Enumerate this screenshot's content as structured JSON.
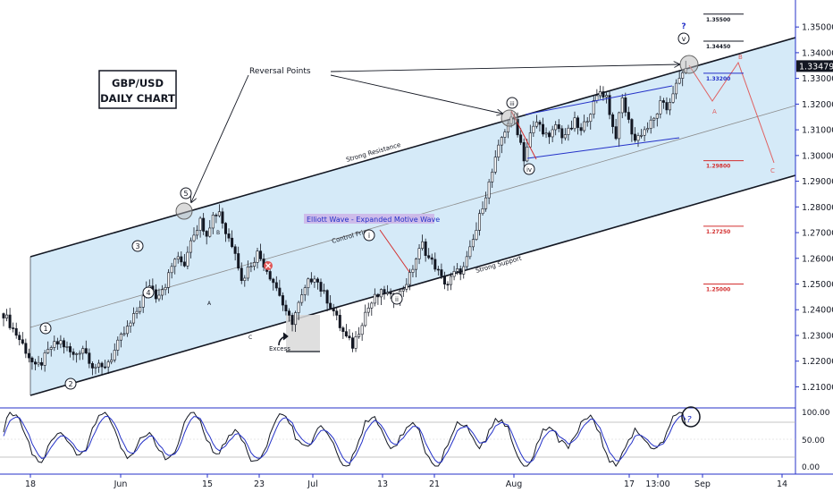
{
  "chart_data": {
    "type": "candlestick",
    "title": "GBP/USD DAILY CHART",
    "title_lines": [
      "GBP/USD",
      "DAILY CHART"
    ],
    "pair": "GBP/USD",
    "timeframe": "Daily",
    "x_tick_labels": [
      "18",
      "Jun",
      "15",
      "23",
      "Jul",
      "13",
      "21",
      "Aug",
      "17",
      "13:00",
      "Sep",
      "14"
    ],
    "price_axis": {
      "ticks": [
        "1.35000",
        "1.34000",
        "1.33000",
        "1.32000",
        "1.31000",
        "1.30000",
        "1.29000",
        "1.28000",
        "1.27000",
        "1.26000",
        "1.25000",
        "1.24000",
        "1.23000",
        "1.22000",
        "1.21000"
      ],
      "ylim": [
        1.2025,
        1.3605
      ],
      "last_price": "1.33479",
      "last_price_value": 1.33479
    },
    "price_path": [
      [
        0,
        1.2385
      ],
      [
        6,
        1.2265
      ],
      [
        10,
        1.2172
      ],
      [
        12,
        1.2195
      ],
      [
        15,
        1.2255
      ],
      [
        18,
        1.2275
      ],
      [
        22,
        1.222
      ],
      [
        25,
        1.2255
      ],
      [
        28,
        1.2185
      ],
      [
        31,
        1.217
      ],
      [
        34,
        1.2215
      ],
      [
        37,
        1.229
      ],
      [
        40,
        1.2345
      ],
      [
        43,
        1.242
      ],
      [
        46,
        1.25
      ],
      [
        48,
        1.2455
      ],
      [
        51,
        1.25
      ],
      [
        54,
        1.26
      ],
      [
        57,
        1.258
      ],
      [
        59,
        1.268
      ],
      [
        62,
        1.2745
      ],
      [
        64,
        1.27
      ],
      [
        66,
        1.2765
      ],
      [
        68,
        1.2785
      ],
      [
        70,
        1.27
      ],
      [
        73,
        1.2635
      ],
      [
        75,
        1.251
      ],
      [
        77,
        1.256
      ],
      [
        80,
        1.262
      ],
      [
        82,
        1.258
      ],
      [
        85,
        1.251
      ],
      [
        87,
        1.246
      ],
      [
        89,
        1.238
      ],
      [
        91,
        1.2355
      ],
      [
        93,
        1.242
      ],
      [
        96,
        1.2505
      ],
      [
        98,
        1.2535
      ],
      [
        100,
        1.248
      ],
      [
        102,
        1.244
      ],
      [
        104,
        1.2395
      ],
      [
        106,
        1.2335
      ],
      [
        108,
        1.229
      ],
      [
        110,
        1.226
      ],
      [
        112,
        1.232
      ],
      [
        114,
        1.239
      ],
      [
        117,
        1.2445
      ],
      [
        120,
        1.247
      ],
      [
        122,
        1.2445
      ],
      [
        125,
        1.2465
      ],
      [
        128,
        1.253
      ],
      [
        130,
        1.26
      ],
      [
        132,
        1.2655
      ],
      [
        134,
        1.26
      ],
      [
        136,
        1.257
      ],
      [
        138,
        1.252
      ],
      [
        140,
        1.25
      ],
      [
        142,
        1.254
      ],
      [
        145,
        1.256
      ],
      [
        147,
        1.263
      ],
      [
        149,
        1.271
      ],
      [
        151,
        1.281
      ],
      [
        153,
        1.289
      ],
      [
        155,
        1.298
      ],
      [
        157,
        1.307
      ],
      [
        159,
        1.313
      ],
      [
        161,
        1.314
      ],
      [
        163,
        1.305
      ],
      [
        164,
        1.299
      ],
      [
        166,
        1.308
      ],
      [
        168,
        1.313
      ],
      [
        170,
        1.31
      ],
      [
        172,
        1.306
      ],
      [
        174,
        1.312
      ],
      [
        176,
        1.308
      ],
      [
        178,
        1.309
      ],
      [
        180,
        1.313
      ],
      [
        182,
        1.309
      ],
      [
        184,
        1.315
      ],
      [
        186,
        1.32
      ],
      [
        188,
        1.325
      ],
      [
        190,
        1.323
      ],
      [
        192,
        1.311
      ],
      [
        193,
        1.308
      ],
      [
        195,
        1.322
      ],
      [
        197,
        1.313
      ],
      [
        199,
        1.306
      ],
      [
        201,
        1.309
      ],
      [
        203,
        1.311
      ],
      [
        205,
        1.314
      ],
      [
        207,
        1.32
      ],
      [
        209,
        1.318
      ],
      [
        211,
        1.325
      ],
      [
        213,
        1.329
      ],
      [
        215,
        1.3348
      ]
    ],
    "channel": {
      "label_upper": "Strong Resistance",
      "label_middle": "Control Price",
      "label_lower": "Strong Support"
    },
    "fib_levels": [
      {
        "label": "1.35500",
        "value": 1.355,
        "color": "#131722"
      },
      {
        "label": "1.34450",
        "value": 1.3445,
        "color": "#131722"
      },
      {
        "label": "1.33200",
        "value": 1.332,
        "color": "#2431c8"
      },
      {
        "label": "1.29800",
        "value": 1.298,
        "color": "#d32f2f"
      },
      {
        "label": "1.27250",
        "value": 1.2725,
        "color": "#d32f2f"
      },
      {
        "label": "1.25000",
        "value": 1.25,
        "color": "#d32f2f"
      }
    ],
    "annotations": {
      "reversal_points": "Reversal Points",
      "elliott_wave": "Elliott Wave - Expanded Motive Wave",
      "excess": "Excess",
      "question_marks": [
        "?",
        "?"
      ]
    },
    "wave_labels_circled": [
      "1",
      "2",
      "3",
      "4",
      "5",
      "i",
      "ii",
      "iii",
      "iv",
      "v"
    ],
    "wave_labels_plain": [
      "A",
      "B",
      "C",
      "A",
      "B",
      "C"
    ],
    "oscillator": {
      "ticks": [
        "100.00",
        "50.00",
        "0.00"
      ],
      "ylim": [
        0,
        100
      ]
    }
  },
  "colors": {
    "channel_fill": "#d3e9f8",
    "channel_line": "#131722",
    "candle_up": "#131722",
    "candle_down": "#131722",
    "pattern_blue": "#2431c8",
    "forecast_red": "#e06060",
    "axis_line": "#2431c8",
    "last_price_bg": "#131722"
  }
}
